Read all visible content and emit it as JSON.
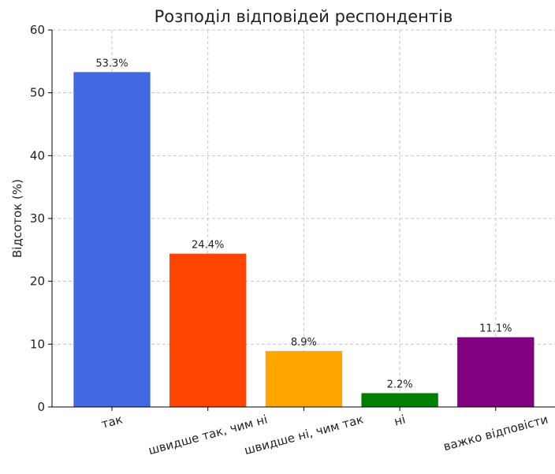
{
  "chart_data": {
    "type": "bar",
    "title": "Розподіл відповідей респондентів",
    "ylabel": "Відсоток (%)",
    "categories": [
      "так",
      "швидше так, чим ні",
      "швидше ні, чим так",
      "ні",
      "важко відповісти"
    ],
    "values": [
      53.3,
      24.4,
      8.9,
      2.2,
      11.1
    ],
    "value_labels": [
      "53.3%",
      "24.4%",
      "8.9%",
      "2.2%",
      "11.1%"
    ],
    "colors": [
      "#4169e1",
      "#ff4500",
      "#ffa500",
      "#008000",
      "#800080"
    ],
    "ylim": [
      0,
      60
    ],
    "yticks": [
      0,
      10,
      20,
      30,
      40,
      50,
      60
    ],
    "grid": true
  }
}
